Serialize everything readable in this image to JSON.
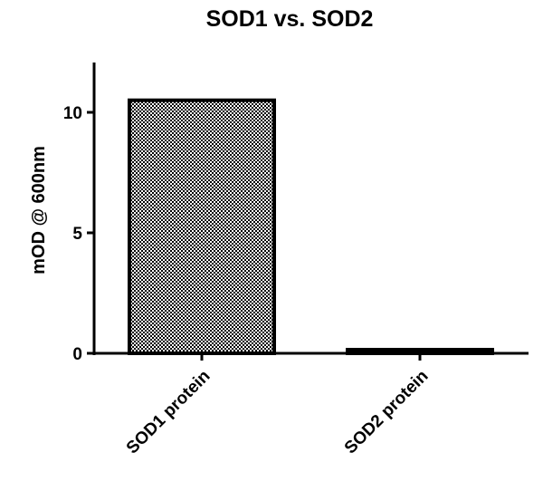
{
  "chart_data": {
    "type": "bar",
    "title": "SOD1 vs. SOD2",
    "xlabel": "",
    "ylabel": "mOD @ 600nm",
    "categories": [
      "SOD1 protein",
      "SOD2 protein"
    ],
    "values": [
      10.5,
      0.15
    ],
    "ylim": [
      0,
      12
    ],
    "yticks": [
      0,
      5,
      10
    ],
    "ytick_labels": [
      "0",
      "5",
      "10"
    ],
    "grid": false,
    "legend": "none",
    "bar_fill": "checkered",
    "colors": {
      "bar_dark": "#000000",
      "bar_light": "#ffffff",
      "axis": "#000000"
    }
  }
}
